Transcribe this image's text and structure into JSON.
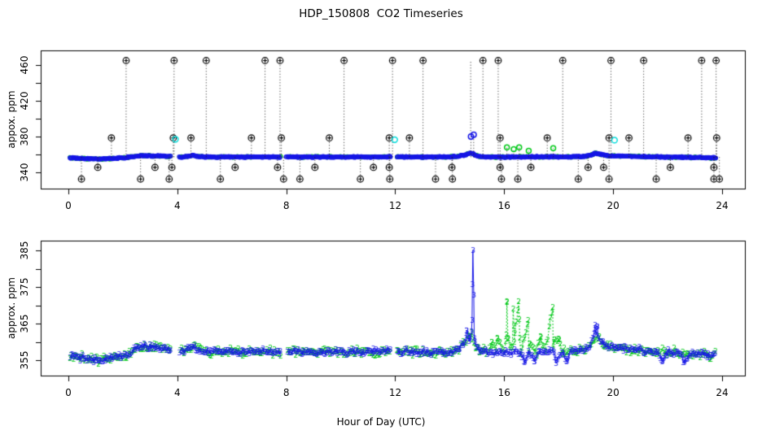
{
  "figure": {
    "title": "HDP_150808  CO2 Timeseries",
    "xlabel": "Hour of Day (UTC)",
    "background": "#ffffff",
    "foreground": "#000000"
  },
  "colors": {
    "blue": "#1515e6",
    "green": "#00c818",
    "cyan": "#00dcdc",
    "black": "#000000",
    "stem": "#222222"
  },
  "baseline_shape": [
    [
      0.05,
      356.2
    ],
    [
      0.3,
      355.9
    ],
    [
      0.6,
      355.4
    ],
    [
      0.9,
      355.1
    ],
    [
      1.2,
      355.0
    ],
    [
      1.5,
      355.5
    ],
    [
      1.8,
      355.9
    ],
    [
      2.1,
      356.3
    ],
    [
      2.35,
      357.6
    ],
    [
      2.6,
      358.4
    ],
    [
      2.9,
      358.6
    ],
    [
      3.2,
      358.5
    ],
    [
      3.5,
      358.2
    ],
    [
      3.74,
      357.9
    ],
    [
      4.2,
      357.3
    ],
    [
      4.45,
      358.3
    ],
    [
      4.6,
      358.9
    ],
    [
      4.75,
      357.9
    ],
    [
      5.0,
      357.3
    ],
    [
      5.5,
      357.2
    ],
    [
      6.0,
      357.4
    ],
    [
      6.5,
      357.2
    ],
    [
      7.0,
      357.3
    ],
    [
      7.5,
      357.2
    ],
    [
      7.79,
      357.3
    ],
    [
      7.99,
      357.4
    ],
    [
      8.5,
      357.3
    ],
    [
      9.0,
      357.2
    ],
    [
      9.5,
      357.3
    ],
    [
      10.0,
      357.2
    ],
    [
      10.5,
      357.3
    ],
    [
      11.0,
      357.2
    ],
    [
      11.5,
      357.3
    ],
    [
      11.83,
      357.4
    ],
    [
      12.05,
      357.4
    ],
    [
      12.5,
      357.2
    ],
    [
      13.0,
      357.3
    ],
    [
      13.5,
      357.2
    ],
    [
      14.0,
      357.4
    ],
    [
      14.3,
      358.0
    ],
    [
      14.55,
      359.5
    ],
    [
      14.7,
      361.0
    ],
    [
      14.78,
      362.0
    ],
    [
      14.95,
      359.0
    ],
    [
      15.1,
      357.8
    ],
    [
      15.4,
      357.2
    ],
    [
      15.7,
      357.0
    ],
    [
      16.0,
      357.2
    ],
    [
      16.3,
      357.3
    ],
    [
      16.6,
      357.2
    ],
    [
      16.9,
      357.4
    ],
    [
      17.2,
      357.3
    ],
    [
      17.5,
      357.5
    ],
    [
      17.8,
      357.6
    ],
    [
      18.1,
      357.4
    ],
    [
      18.4,
      357.3
    ],
    [
      18.7,
      357.5
    ],
    [
      19.0,
      358.0
    ],
    [
      19.2,
      359.5
    ],
    [
      19.35,
      361.5
    ],
    [
      19.45,
      361.0
    ],
    [
      19.6,
      359.5
    ],
    [
      19.8,
      358.6
    ],
    [
      20.0,
      358.5
    ],
    [
      20.4,
      358.2
    ],
    [
      20.8,
      357.9
    ],
    [
      21.2,
      357.6
    ],
    [
      21.6,
      357.4
    ],
    [
      22.0,
      357.2
    ],
    [
      22.4,
      357.0
    ],
    [
      22.8,
      356.8
    ],
    [
      23.2,
      356.6
    ],
    [
      23.5,
      356.4
    ],
    [
      23.78,
      356.3
    ]
  ],
  "data_gaps": [
    [
      3.75,
      4.05
    ],
    [
      7.8,
      8.0
    ],
    [
      11.84,
      12.04
    ]
  ],
  "chart_data": [
    {
      "type": "scatter",
      "panel": "top",
      "title": "",
      "xlabel": "",
      "ylabel": "appox. ppm",
      "xlim": [
        0,
        24
      ],
      "ylim": [
        322,
        476
      ],
      "xticks": [
        0,
        4,
        8,
        12,
        16,
        20,
        24
      ],
      "yticks": [
        340,
        360,
        380,
        400,
        420,
        440,
        460
      ],
      "ytick_labeled": [
        340,
        380,
        420,
        460
      ],
      "grid": false,
      "series": [
        {
          "name": "co2-band-green",
          "kind": "band",
          "marker": "circle",
          "color": "green",
          "size": 1.9,
          "step": 0.05,
          "jitter": 1.2,
          "shape": "baseline_shape",
          "gaps": "data_gaps"
        },
        {
          "name": "co2-band-blue",
          "kind": "band",
          "marker": "circle",
          "color": "blue",
          "size": 2.2,
          "step": 0.033,
          "jitter": 0.8,
          "shape": "baseline_shape",
          "gaps": "data_gaps"
        },
        {
          "name": "cal-high",
          "kind": "spikes",
          "value": 465,
          "stem_base": 357,
          "marker": "circle-plus",
          "color": "black",
          "xs": [
            2.12,
            3.88,
            5.06,
            7.22,
            7.77,
            10.12,
            11.9,
            13.02,
            15.22,
            15.78,
            18.15,
            19.92,
            21.12,
            23.25,
            23.78
          ]
        },
        {
          "name": "cal-mid",
          "kind": "spikes",
          "value": 378.5,
          "stem_base": 357,
          "marker": "circle-plus",
          "color": "black",
          "xs": [
            1.58,
            3.85,
            4.5,
            6.72,
            7.82,
            9.58,
            11.78,
            12.52,
            15.85,
            17.58,
            19.85,
            20.58,
            22.75,
            23.8
          ]
        },
        {
          "name": "cal-low1",
          "kind": "spikes",
          "value": 345.5,
          "stem_base": 357,
          "marker": "circle-plus",
          "color": "black",
          "xs": [
            1.08,
            3.18,
            3.8,
            6.12,
            7.68,
            9.05,
            11.2,
            11.78,
            14.08,
            15.85,
            16.98,
            19.08,
            19.65,
            22.1,
            23.7
          ]
        },
        {
          "name": "cal-low2",
          "kind": "spikes",
          "value": 332.5,
          "stem_base": 357,
          "marker": "circle-plus",
          "color": "black",
          "xs": [
            0.48,
            2.65,
            3.7,
            5.58,
            7.9,
            8.5,
            10.72,
            11.8,
            13.48,
            14.1,
            15.9,
            16.5,
            18.72,
            19.85,
            21.58,
            23.7,
            23.9
          ]
        },
        {
          "name": "stem-extra",
          "kind": "stems",
          "segs": [
            [
              14.77,
              383,
              465
            ]
          ]
        },
        {
          "name": "peaks-blue",
          "kind": "points",
          "marker": "circle",
          "color": "blue",
          "size": 3.2,
          "stem_base": 357,
          "pts": [
            [
              14.78,
              380
            ],
            [
              14.88,
              382
            ]
          ]
        },
        {
          "name": "peaks-green",
          "kind": "points",
          "marker": "circle",
          "color": "green",
          "size": 3.0,
          "stem_base": 357,
          "pts": [
            [
              16.1,
              368
            ],
            [
              16.35,
              366
            ],
            [
              16.55,
              368
            ],
            [
              16.9,
              364
            ],
            [
              17.8,
              367
            ]
          ]
        },
        {
          "name": "aux-cyan",
          "kind": "points",
          "marker": "circle",
          "color": "cyan",
          "size": 3.4,
          "pts": [
            [
              3.93,
              377
            ],
            [
              11.98,
              376.5
            ],
            [
              20.05,
              376
            ]
          ]
        }
      ]
    },
    {
      "type": "scatter",
      "panel": "bottom",
      "title": "",
      "xlabel": "Hour of Day (UTC)",
      "ylabel": "approx. ppm",
      "xlim": [
        0,
        24
      ],
      "ylim": [
        351,
        388
      ],
      "xticks": [
        0,
        4,
        8,
        12,
        16,
        20,
        24
      ],
      "yticks": [
        355,
        360,
        365,
        370,
        375,
        380,
        385
      ],
      "ytick_labeled": [
        355,
        365,
        375,
        385
      ],
      "grid": false,
      "series": [
        {
          "name": "sensor-2",
          "kind": "band",
          "marker": "digit",
          "digit": "2",
          "color": "green",
          "line": "dotted",
          "step": 0.05,
          "jitter": 1.3,
          "shape": "baseline_shape",
          "gaps": "data_gaps",
          "extras": [
            [
              15.55,
              360
            ],
            [
              15.75,
              361
            ],
            [
              16.08,
              362
            ],
            [
              16.1,
              371
            ],
            [
              16.14,
              361
            ],
            [
              16.33,
              369
            ],
            [
              16.37,
              360
            ],
            [
              16.53,
              371
            ],
            [
              16.57,
              361
            ],
            [
              16.88,
              366
            ],
            [
              16.92,
              359.5
            ],
            [
              17.33,
              361.5
            ],
            [
              17.78,
              369.5
            ],
            [
              17.82,
              360
            ],
            [
              18.02,
              360.5
            ]
          ]
        },
        {
          "name": "sensor-3",
          "kind": "band",
          "marker": "digit",
          "digit": "3",
          "color": "blue",
          "line": "solid",
          "step": 0.042,
          "jitter": 1.0,
          "shape": "baseline_shape",
          "gaps": "data_gaps",
          "extras": [
            [
              14.62,
              363
            ],
            [
              14.72,
              360.8
            ],
            [
              14.82,
              366
            ],
            [
              14.85,
              385
            ],
            [
              14.9,
              361
            ],
            [
              16.75,
              354.3
            ],
            [
              17.1,
              354.6
            ],
            [
              17.9,
              354.2
            ],
            [
              18.3,
              354.5
            ],
            [
              19.33,
              363.8
            ],
            [
              19.42,
              364.2
            ],
            [
              21.8,
              354.6
            ],
            [
              22.6,
              354.9
            ]
          ]
        }
      ]
    }
  ]
}
